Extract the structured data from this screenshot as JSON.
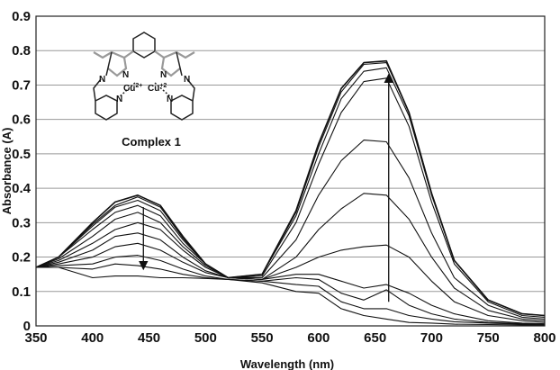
{
  "chart_data": {
    "type": "line",
    "xlabel": "Wavelength (nm)",
    "ylabel": "Absorbance (A)",
    "xlim": [
      350,
      800
    ],
    "ylim": [
      0,
      0.9
    ],
    "xticks": [
      350,
      400,
      450,
      500,
      550,
      600,
      650,
      700,
      750,
      800
    ],
    "yticks": [
      0,
      0.1,
      0.2,
      0.3,
      0.4,
      0.5,
      0.6,
      0.7,
      0.8,
      0.9
    ],
    "ytick_labels": [
      "0",
      "0.1",
      "0.2",
      "0.3",
      "0.4",
      "0.5",
      "0.6",
      "0.7",
      "0.8",
      "0.9"
    ],
    "grid": "horizontal",
    "annotations": [
      {
        "type": "arrow",
        "x": 445,
        "y_from": 0.345,
        "y_to": 0.175
      },
      {
        "type": "arrow",
        "x": 662,
        "y_from": 0.07,
        "y_to": 0.72
      }
    ],
    "inset": {
      "cu_label": "Cu",
      "cu_sup": "2+",
      "cu2_sup": "+2",
      "n_label": "N",
      "caption": "Complex 1"
    },
    "series": [
      {
        "x": [
          350,
          370,
          400,
          420,
          440,
          460,
          480,
          500,
          520,
          550,
          580,
          600,
          620,
          640,
          660,
          680,
          700,
          720,
          750,
          780,
          800
        ],
        "y": [
          0.17,
          0.17,
          0.14,
          0.145,
          0.145,
          0.14,
          0.14,
          0.138,
          0.135,
          0.125,
          0.1,
          0.095,
          0.05,
          0.03,
          0.02,
          0.01,
          0.008,
          0.005,
          0.004,
          0.003,
          0.002
        ]
      },
      {
        "x": [
          350,
          370,
          400,
          420,
          440,
          460,
          480,
          500,
          520,
          550,
          580,
          600,
          620,
          640,
          660,
          680,
          700,
          720,
          750,
          780,
          800
        ],
        "y": [
          0.17,
          0.17,
          0.165,
          0.18,
          0.175,
          0.165,
          0.15,
          0.14,
          0.135,
          0.13,
          0.12,
          0.115,
          0.07,
          0.05,
          0.05,
          0.03,
          0.02,
          0.012,
          0.008,
          0.005,
          0.004
        ]
      },
      {
        "x": [
          350,
          370,
          400,
          420,
          440,
          460,
          480,
          500,
          520,
          550,
          580,
          600,
          620,
          640,
          660,
          680,
          700,
          720,
          750,
          780,
          800
        ],
        "y": [
          0.17,
          0.175,
          0.18,
          0.2,
          0.205,
          0.19,
          0.165,
          0.145,
          0.135,
          0.13,
          0.14,
          0.135,
          0.095,
          0.075,
          0.105,
          0.06,
          0.035,
          0.02,
          0.01,
          0.006,
          0.005
        ]
      },
      {
        "x": [
          350,
          370,
          400,
          420,
          440,
          460,
          480,
          500,
          520,
          550,
          580,
          600,
          620,
          640,
          660,
          680,
          700,
          720,
          750,
          780,
          800
        ],
        "y": [
          0.17,
          0.18,
          0.2,
          0.23,
          0.24,
          0.22,
          0.185,
          0.155,
          0.14,
          0.135,
          0.15,
          0.15,
          0.13,
          0.11,
          0.12,
          0.095,
          0.06,
          0.035,
          0.015,
          0.008,
          0.006
        ]
      },
      {
        "x": [
          350,
          370,
          400,
          420,
          440,
          460,
          480,
          500,
          520,
          550,
          580,
          600,
          620,
          640,
          660,
          680,
          700,
          720,
          750,
          780,
          800
        ],
        "y": [
          0.17,
          0.185,
          0.22,
          0.26,
          0.27,
          0.25,
          0.2,
          0.16,
          0.14,
          0.135,
          0.17,
          0.2,
          0.22,
          0.23,
          0.235,
          0.2,
          0.13,
          0.07,
          0.03,
          0.015,
          0.01
        ]
      },
      {
        "x": [
          350,
          370,
          400,
          420,
          440,
          460,
          480,
          500,
          520,
          550,
          580,
          600,
          620,
          640,
          660,
          680,
          700,
          720,
          750,
          780,
          800
        ],
        "y": [
          0.17,
          0.19,
          0.24,
          0.28,
          0.3,
          0.28,
          0.22,
          0.17,
          0.14,
          0.135,
          0.2,
          0.28,
          0.34,
          0.385,
          0.38,
          0.31,
          0.2,
          0.11,
          0.045,
          0.02,
          0.015
        ]
      },
      {
        "x": [
          350,
          370,
          400,
          420,
          440,
          460,
          480,
          500,
          520,
          550,
          580,
          600,
          620,
          640,
          660,
          680,
          700,
          720,
          750,
          780,
          800
        ],
        "y": [
          0.17,
          0.195,
          0.26,
          0.31,
          0.33,
          0.3,
          0.23,
          0.175,
          0.14,
          0.14,
          0.25,
          0.38,
          0.48,
          0.54,
          0.535,
          0.43,
          0.27,
          0.14,
          0.06,
          0.025,
          0.02
        ]
      },
      {
        "x": [
          350,
          370,
          400,
          420,
          440,
          460,
          480,
          500,
          520,
          550,
          580,
          600,
          620,
          640,
          660,
          680,
          700,
          720,
          750,
          780,
          800
        ],
        "y": [
          0.17,
          0.2,
          0.28,
          0.33,
          0.35,
          0.32,
          0.24,
          0.18,
          0.14,
          0.145,
          0.3,
          0.47,
          0.62,
          0.71,
          0.72,
          0.58,
          0.36,
          0.18,
          0.07,
          0.03,
          0.025
        ]
      },
      {
        "x": [
          350,
          370,
          400,
          420,
          440,
          460,
          480,
          500,
          520,
          550,
          580,
          600,
          620,
          640,
          660,
          680,
          700,
          720,
          750,
          780,
          800
        ],
        "y": [
          0.17,
          0.2,
          0.29,
          0.345,
          0.365,
          0.335,
          0.25,
          0.18,
          0.14,
          0.15,
          0.32,
          0.5,
          0.66,
          0.74,
          0.75,
          0.61,
          0.38,
          0.19,
          0.075,
          0.035,
          0.03
        ]
      },
      {
        "x": [
          350,
          370,
          400,
          420,
          440,
          460,
          480,
          500,
          520,
          550,
          580,
          600,
          620,
          640,
          660,
          680,
          700,
          720,
          750,
          780,
          800
        ],
        "y": [
          0.17,
          0.2,
          0.295,
          0.35,
          0.375,
          0.345,
          0.255,
          0.18,
          0.14,
          0.15,
          0.33,
          0.52,
          0.68,
          0.76,
          0.765,
          0.62,
          0.385,
          0.19,
          0.075,
          0.035,
          0.03
        ]
      },
      {
        "x": [
          350,
          370,
          400,
          420,
          440,
          460,
          480,
          500,
          520,
          550,
          580,
          600,
          620,
          640,
          660,
          680,
          700,
          720,
          750,
          780,
          800
        ],
        "y": [
          0.17,
          0.2,
          0.3,
          0.36,
          0.38,
          0.35,
          0.26,
          0.18,
          0.14,
          0.15,
          0.335,
          0.53,
          0.69,
          0.765,
          0.77,
          0.62,
          0.385,
          0.19,
          0.075,
          0.035,
          0.03
        ]
      }
    ]
  }
}
